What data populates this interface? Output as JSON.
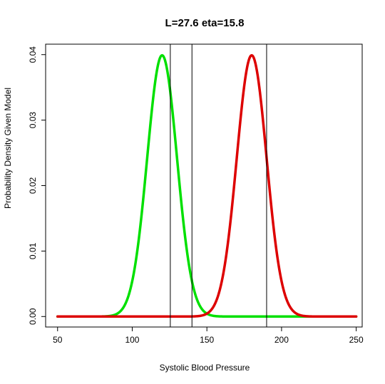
{
  "chart_data": {
    "type": "line",
    "title": "L=27.6 eta=15.8",
    "xlabel": "Systolic Blood Pressure",
    "ylabel": "Probability Density Given Model",
    "xlim": [
      42,
      254
    ],
    "ylim": [
      -0.0016,
      0.0416
    ],
    "x_ticks": [
      50,
      100,
      150,
      200,
      250
    ],
    "y_ticks": [
      0.0,
      0.01,
      0.02,
      0.03,
      0.04
    ],
    "x_tick_labels": [
      "50",
      "100",
      "150",
      "200",
      "250"
    ],
    "y_tick_labels": [
      "0.00",
      "0.01",
      "0.02",
      "0.03",
      "0.04"
    ],
    "x_range": [
      50,
      250
    ],
    "series": [
      {
        "color": "#00e000",
        "mean": 120,
        "sd": 10,
        "peak": 0.0399
      },
      {
        "color": "#dd0000",
        "mean": 180,
        "sd": 10,
        "peak": 0.0399
      }
    ],
    "vertical_lines": [
      125.5,
      140,
      190
    ],
    "grid": false,
    "legend": "none"
  }
}
